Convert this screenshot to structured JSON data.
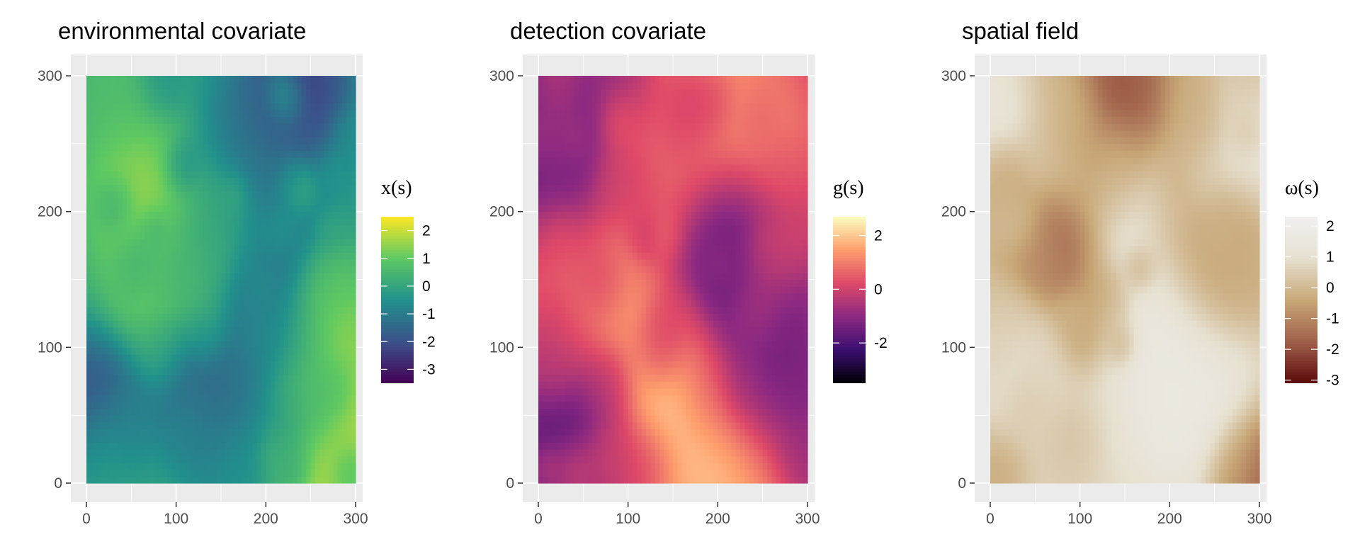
{
  "chart_data": [
    {
      "type": "heatmap",
      "title": "environmental covariate",
      "legend_title": "x(s)",
      "xlim": [
        0,
        300
      ],
      "ylim": [
        0,
        300
      ],
      "x_ticks": [
        "0",
        "100",
        "200",
        "300"
      ],
      "y_ticks": [
        "0",
        "100",
        "200",
        "300"
      ],
      "legend_range": [
        -3.5,
        2.5
      ],
      "legend_ticks": [
        "2",
        "1",
        "0",
        "-1",
        "-2",
        "-3"
      ],
      "colormap": "viridis",
      "colors": [
        "#440154",
        "#3b528b",
        "#21918c",
        "#5ec962",
        "#fde725"
      ],
      "seed": 11,
      "hotspots": [
        {
          "x": 55,
          "y": 215,
          "v": 2.0
        },
        {
          "x": 75,
          "y": 150,
          "v": 1.6
        },
        {
          "x": 125,
          "y": 165,
          "v": 1.3
        },
        {
          "x": 265,
          "y": 120,
          "v": 2.2
        },
        {
          "x": 270,
          "y": 40,
          "v": 2.4
        },
        {
          "x": 300,
          "y": 10,
          "v": 2.0
        },
        {
          "x": 240,
          "y": 290,
          "v": -3.2
        },
        {
          "x": 215,
          "y": 270,
          "v": -2.0
        },
        {
          "x": 10,
          "y": 60,
          "v": -2.5
        },
        {
          "x": 120,
          "y": 80,
          "v": -2.0
        },
        {
          "x": 200,
          "y": 140,
          "v": -2.0
        },
        {
          "x": 170,
          "y": 40,
          "v": -1.5
        },
        {
          "x": 200,
          "y": 220,
          "v": -1.0
        },
        {
          "x": 30,
          "y": 290,
          "v": 0.8
        }
      ]
    },
    {
      "type": "heatmap",
      "title": "detection covariate",
      "legend_title": "g(s)",
      "xlim": [
        0,
        300
      ],
      "ylim": [
        0,
        300
      ],
      "x_ticks": [
        "0",
        "100",
        "200",
        "300"
      ],
      "y_ticks": [
        "0",
        "100",
        "200",
        "300"
      ],
      "legend_range": [
        -3.5,
        2.7
      ],
      "legend_ticks": [
        "2",
        "0",
        "-2"
      ],
      "colormap": "magma",
      "colors": [
        "#000004",
        "#3b0f70",
        "#8c2981",
        "#de4968",
        "#fe9f6d",
        "#fcfdbf"
      ],
      "seed": 23,
      "hotspots": [
        {
          "x": 20,
          "y": 245,
          "v": -3.4
        },
        {
          "x": 15,
          "y": 200,
          "v": -1.2
        },
        {
          "x": 215,
          "y": 180,
          "v": -2.5
        },
        {
          "x": 240,
          "y": 90,
          "v": -2.0
        },
        {
          "x": 300,
          "y": 80,
          "v": -1.5
        },
        {
          "x": 20,
          "y": 30,
          "v": -2.2
        },
        {
          "x": 100,
          "y": 300,
          "v": -1.5
        },
        {
          "x": 170,
          "y": 290,
          "v": 2.0
        },
        {
          "x": 140,
          "y": 75,
          "v": 2.6
        },
        {
          "x": 195,
          "y": 15,
          "v": 2.5
        },
        {
          "x": 80,
          "y": 140,
          "v": 1.8
        },
        {
          "x": 240,
          "y": 255,
          "v": 1.5
        },
        {
          "x": 20,
          "y": 170,
          "v": 1.2
        },
        {
          "x": 130,
          "y": 230,
          "v": 1.0
        }
      ]
    },
    {
      "type": "heatmap",
      "title": "spatial field",
      "legend_title": "ω(s)",
      "xlim": [
        0,
        300
      ],
      "ylim": [
        0,
        300
      ],
      "x_ticks": [
        "0",
        "100",
        "200",
        "300"
      ],
      "y_ticks": [
        "0",
        "100",
        "200",
        "300"
      ],
      "legend_range": [
        -3.1,
        2.3
      ],
      "legend_ticks": [
        "2",
        "1",
        "0",
        "-1",
        "-2",
        "-3"
      ],
      "colormap": "brown-tan-white",
      "colors": [
        "#5a0a0a",
        "#a0604a",
        "#c8a878",
        "#e6e0d0",
        "#f0f0f0"
      ],
      "seed": 37,
      "hotspots": [
        {
          "x": 150,
          "y": 265,
          "v": -3.0
        },
        {
          "x": 130,
          "y": 285,
          "v": -2.0
        },
        {
          "x": 75,
          "y": 180,
          "v": -2.0
        },
        {
          "x": 210,
          "y": 200,
          "v": -1.0
        },
        {
          "x": 300,
          "y": 5,
          "v": -2.5
        },
        {
          "x": 35,
          "y": 280,
          "v": 2.2
        },
        {
          "x": 285,
          "y": 245,
          "v": 1.5
        },
        {
          "x": 170,
          "y": 210,
          "v": 2.2
        },
        {
          "x": 190,
          "y": 110,
          "v": 1.8
        },
        {
          "x": 195,
          "y": 50,
          "v": 2.0
        },
        {
          "x": 240,
          "y": 70,
          "v": 1.8
        },
        {
          "x": 30,
          "y": 80,
          "v": 1.5
        },
        {
          "x": 100,
          "y": 20,
          "v": 1.0
        },
        {
          "x": 250,
          "y": 150,
          "v": -0.8
        }
      ]
    }
  ]
}
